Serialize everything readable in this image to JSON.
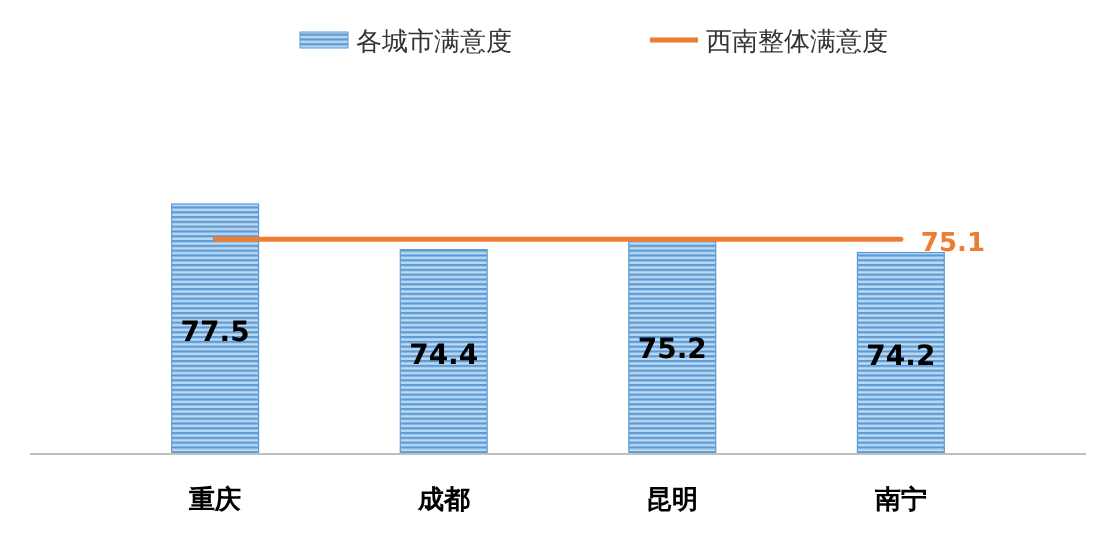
{
  "chart_data": {
    "type": "bar",
    "categories": [
      "重庆",
      "成都",
      "昆明",
      "南宁"
    ],
    "ylim": [
      60.5,
      77.5
    ],
    "legend": "top",
    "data_labels": true,
    "series": [
      {
        "name": "各城市满意度",
        "color": "#5b9bd5",
        "values": [
          77.5,
          74.4,
          75.2,
          74.2
        ]
      },
      {
        "name": "西南整体满意度",
        "type": "line",
        "color": "#ed7d31",
        "values": [
          75.1,
          75.1,
          75.1,
          75.1
        ],
        "value_labels": [
          null,
          null,
          null,
          "75.1"
        ]
      }
    ]
  }
}
